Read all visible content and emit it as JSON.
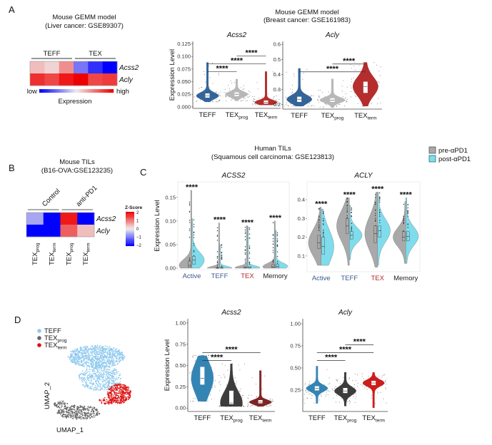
{
  "panels": {
    "A": {
      "letter": "A",
      "heatmap_title": [
        "Mouse GEMM model",
        "(Liver cancer: GSE89307)"
      ],
      "violin_title": [
        "Mouse GEMM model",
        "(Breast cancer: GSE161983)"
      ]
    },
    "B": {
      "letter": "B",
      "title": [
        "Mouse TILs",
        "(B16-OVA:GSE123235)"
      ]
    },
    "C": {
      "letter": "C",
      "title": [
        "Human TILs",
        "(Squamous cell carcinoma: GSE123813)"
      ],
      "legend": [
        {
          "label": "pre-αPD1",
          "color": "#a9a9a9"
        },
        {
          "label": "post-αPD1",
          "color": "#7fdcec"
        }
      ]
    },
    "D": {
      "letter": "D"
    }
  },
  "chart_data": [
    {
      "id": "A-heatmap",
      "type": "heatmap",
      "rows": [
        "Acss2",
        "Acly"
      ],
      "column_groups": [
        {
          "label": "TEFF",
          "span": 3
        },
        {
          "label": "TEX",
          "span": 3
        }
      ],
      "values": [
        [
          0.2,
          0.1,
          0.4,
          -0.5,
          -0.8,
          -1.0
        ],
        [
          0.8,
          0.7,
          0.9,
          1.0,
          0.7,
          0.75
        ]
      ],
      "colorbar": {
        "low": "low",
        "high": "high",
        "label": "Expression"
      },
      "colors": {
        "low": "#0000ff",
        "mid": "#f0ecec",
        "high": "#ee0000"
      }
    },
    {
      "id": "A-acss2",
      "type": "violin",
      "title": "Acss2",
      "ylabel": "Expression Level",
      "ylim": [
        -0.003,
        0.13
      ],
      "yticks": [
        "0.000",
        "0.025",
        "0.050",
        "0.075",
        "0.100",
        "0.125"
      ],
      "groups": [
        {
          "label": {
            "main": "TEFF",
            "sub": ""
          },
          "color": "#2a5d94",
          "median": 0.022,
          "q1": 0.019,
          "q3": 0.026,
          "min": 0.01,
          "max": 0.088
        },
        {
          "label": {
            "main": "TEX",
            "sub": "prog"
          },
          "color": "#b5b5b5",
          "median": 0.025,
          "q1": 0.022,
          "q3": 0.028,
          "min": 0.012,
          "max": 0.055
        },
        {
          "label": {
            "main": "TEX",
            "sub": "term"
          },
          "color": "#b22222",
          "median": 0.009,
          "q1": 0.007,
          "q3": 0.012,
          "min": 0.004,
          "max": 0.07
        }
      ],
      "comparisons": [
        {
          "from": 0,
          "to": 1,
          "label": "****"
        },
        {
          "from": 0,
          "to": 2,
          "label": "****"
        },
        {
          "from": 1,
          "to": 2,
          "label": "****"
        }
      ]
    },
    {
      "id": "A-acly",
      "type": "violin",
      "title": "Acly",
      "ylabel": "",
      "ylim": [
        0.17,
        0.62
      ],
      "yticks": [
        "0.2",
        "0.3",
        "0.4",
        "0.5",
        "0.6"
      ],
      "groups": [
        {
          "label": {
            "main": "TEFF",
            "sub": ""
          },
          "color": "#2a5d94",
          "median": 0.235,
          "q1": 0.22,
          "q3": 0.25,
          "min": 0.19,
          "max": 0.44
        },
        {
          "label": {
            "main": "TEX",
            "sub": "prog"
          },
          "color": "#b5b5b5",
          "median": 0.23,
          "q1": 0.22,
          "q3": 0.24,
          "min": 0.18,
          "max": 0.37
        },
        {
          "label": {
            "main": "TEX",
            "sub": "term"
          },
          "color": "#b22222",
          "median": 0.32,
          "q1": 0.28,
          "q3": 0.35,
          "min": 0.19,
          "max": 0.48
        }
      ],
      "comparisons": [
        {
          "from": 0,
          "to": 2,
          "label": "****"
        },
        {
          "from": 1,
          "to": 2,
          "label": "****"
        }
      ]
    },
    {
      "id": "B-heatmap",
      "type": "heatmap",
      "rows": [
        "Acss2",
        "Acly"
      ],
      "column_groups": [
        {
          "label": "Control",
          "span": 2
        },
        {
          "label": "anti-PD1",
          "span": 2
        }
      ],
      "columns": [
        {
          "main": "TEX",
          "sub": "prog"
        },
        {
          "main": "TEX",
          "sub": "term"
        },
        {
          "main": "TEX",
          "sub": "prog"
        },
        {
          "main": "TEX",
          "sub": "term"
        }
      ],
      "values": [
        [
          -0.3,
          -1.2,
          0.9,
          -1.2
        ],
        [
          -1.3,
          -1.1,
          0.6,
          0.2
        ]
      ],
      "colorbar": {
        "label": "Z-Score",
        "ticks": [
          "2",
          "1",
          "0",
          "−1",
          "−2"
        ]
      },
      "colors": {
        "low": "#0000ff",
        "mid": "#f0ecec",
        "high": "#ee0000"
      }
    },
    {
      "id": "C-acss2",
      "type": "split-violin",
      "title": "ACSS2",
      "ylabel": "Expression Level",
      "ylim": [
        -0.003,
        0.183
      ],
      "yticks": [
        "0.00",
        "0.05",
        "0.10",
        "0.15"
      ],
      "ytick_values": [
        0,
        0.05,
        0.1,
        0.15
      ],
      "groups": [
        {
          "label": "Active",
          "label_color": "#3d5a8c",
          "sig": "****",
          "pre": {
            "median": 0.006,
            "q1": 0.002,
            "q3": 0.015,
            "max": 0.165
          },
          "post": {
            "median": 0.017,
            "q1": 0.008,
            "q3": 0.025,
            "max": 0.105
          }
        },
        {
          "label": "TEFF",
          "label_color": "#3d5a8c",
          "sig": "****",
          "pre": {
            "median": 0.0,
            "q1": 0.0,
            "q3": 0.001,
            "max": 0.096
          },
          "post": {
            "median": 0.0,
            "q1": 0.0,
            "q3": 0.002,
            "max": 0.05
          }
        },
        {
          "label": "TEX",
          "label_color": "#b02a2a",
          "sig": "****",
          "pre": {
            "median": 0.001,
            "q1": 0.0,
            "q3": 0.003,
            "max": 0.09
          },
          "post": {
            "median": 0.001,
            "q1": 0.0,
            "q3": 0.004,
            "max": 0.088
          }
        },
        {
          "label": "Memory",
          "label_color": "#222222",
          "sig": "****",
          "pre": {
            "median": 0.003,
            "q1": 0.001,
            "q3": 0.008,
            "max": 0.1
          },
          "post": {
            "median": 0.004,
            "q1": 0.001,
            "q3": 0.008,
            "max": 0.08
          }
        }
      ]
    },
    {
      "id": "C-acly",
      "type": "split-violin",
      "title": "ACLY",
      "ylabel": "",
      "ylim": [
        0.016,
        0.495
      ],
      "yticks": [
        "0.1",
        "0.2",
        "0.3",
        "0.4"
      ],
      "ytick_values": [
        0.1,
        0.2,
        0.3,
        0.4
      ],
      "groups": [
        {
          "label": "Active",
          "label_color": "#3d5a8c",
          "sig": "****",
          "pre": {
            "median": 0.17,
            "q1": 0.14,
            "q3": 0.21,
            "min": 0.05,
            "max": 0.36
          },
          "post": {
            "median": 0.15,
            "q1": 0.11,
            "q3": 0.2,
            "min": 0.05,
            "max": 0.35
          }
        },
        {
          "label": "TEFF",
          "label_color": "#3d5a8c",
          "sig": "****",
          "pre": {
            "median": 0.26,
            "q1": 0.22,
            "q3": 0.3,
            "min": 0.05,
            "max": 0.41
          },
          "post": {
            "median": 0.21,
            "q1": 0.19,
            "q3": 0.23,
            "min": 0.08,
            "max": 0.37
          }
        },
        {
          "label": "TEX",
          "label_color": "#b02a2a",
          "sig": "****",
          "pre": {
            "median": 0.22,
            "q1": 0.17,
            "q3": 0.26,
            "min": 0.04,
            "max": 0.44
          },
          "post": {
            "median": 0.235,
            "q1": 0.2,
            "q3": 0.26,
            "min": 0.05,
            "max": 0.44
          }
        },
        {
          "label": "Memory",
          "label_color": "#222222",
          "sig": "****",
          "pre": {
            "median": 0.2,
            "q1": 0.18,
            "q3": 0.23,
            "min": 0.06,
            "max": 0.39
          },
          "post": {
            "median": 0.205,
            "q1": 0.18,
            "q3": 0.23,
            "min": 0.06,
            "max": 0.41
          }
        }
      ]
    },
    {
      "id": "D-umap",
      "type": "scatter",
      "xlabel": "UMAP_1",
      "ylabel": "UMAP_2",
      "legend": [
        {
          "label": {
            "main": "TEFF",
            "sub": ""
          },
          "color": "#8ec9ee"
        },
        {
          "label": {
            "main": "TEX",
            "sub": "prog"
          },
          "color": "#666666"
        },
        {
          "label": {
            "main": "TEX",
            "sub": "term"
          },
          "color": "#dd1111"
        }
      ]
    },
    {
      "id": "D-acss2",
      "type": "violin",
      "title": "Acss2",
      "ylabel": "Expression Level",
      "ylim": [
        -0.04,
        1.05
      ],
      "yticks": [
        "0.00",
        "0.25",
        "0.50",
        "0.75",
        "1.00"
      ],
      "ytick_values": [
        0,
        0.25,
        0.5,
        0.75,
        1
      ],
      "groups": [
        {
          "label": {
            "main": "TEFF",
            "sub": ""
          },
          "color": "#2a7fb0",
          "median": 0.35,
          "q1": 0.28,
          "q3": 0.48,
          "min": 0.08,
          "max": 0.62
        },
        {
          "label": {
            "main": "TEX",
            "sub": "prog"
          },
          "color": "#333333",
          "median": 0.06,
          "q1": 0.05,
          "q3": 0.2,
          "min": 0.02,
          "max": 0.52
        },
        {
          "label": {
            "main": "TEX",
            "sub": "term"
          },
          "color": "#7a1a1a",
          "median": 0.07,
          "q1": 0.06,
          "q3": 0.09,
          "min": 0.02,
          "max": 0.44
        }
      ],
      "comparisons": [
        {
          "from": 0,
          "to": 1,
          "label": "****"
        },
        {
          "from": 0,
          "to": 2,
          "label": "****"
        }
      ]
    },
    {
      "id": "D-acly",
      "type": "violin",
      "title": "Acly",
      "ylabel": "",
      "ylim": [
        0.008,
        1.056
      ],
      "yticks": [
        "0.25",
        "0.50",
        "0.75",
        "1.00"
      ],
      "ytick_values": [
        0.25,
        0.5,
        0.75,
        1
      ],
      "groups": [
        {
          "label": {
            "main": "TEFF",
            "sub": ""
          },
          "color": "#2a7fb0",
          "median": 0.27,
          "q1": 0.25,
          "q3": 0.29,
          "min": 0.1,
          "max": 0.52
        },
        {
          "label": {
            "main": "TEX",
            "sub": "prog"
          },
          "color": "#333333",
          "median": 0.24,
          "q1": 0.22,
          "q3": 0.27,
          "min": 0.07,
          "max": 0.45
        },
        {
          "label": {
            "main": "TEX",
            "sub": "term"
          },
          "color": "#cc1111",
          "median": 0.33,
          "q1": 0.31,
          "q3": 0.35,
          "min": 0.05,
          "max": 0.45
        }
      ],
      "comparisons": [
        {
          "from": 0,
          "to": 1,
          "label": "****"
        },
        {
          "from": 0,
          "to": 2,
          "label": "****"
        },
        {
          "from": 1,
          "to": 2,
          "label": "****"
        }
      ]
    }
  ]
}
